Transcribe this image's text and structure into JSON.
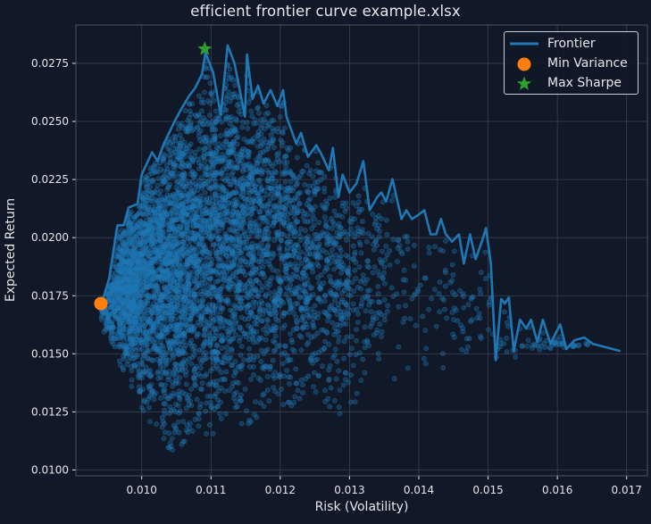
{
  "window": {
    "title": "efficient frontier curve example.xlsx"
  },
  "colors": {
    "background": "#111827",
    "grid": "#3a4150",
    "spine": "#4b5260",
    "text": "#e5e7eb",
    "scatter": "#1f77b4",
    "frontier": "#1f77b4",
    "min_variance": "#ff7f0e",
    "max_sharpe": "#2ca02c"
  },
  "legend": {
    "position": "upper right",
    "items": [
      {
        "label": "Frontier",
        "marker": "line",
        "color": "#1f77b4"
      },
      {
        "label": "Min Variance",
        "marker": "circle",
        "color": "#ff7f0e"
      },
      {
        "label": "Max Sharpe",
        "marker": "star",
        "color": "#2ca02c"
      }
    ]
  },
  "chart_data": {
    "type": "scatter",
    "title": "efficient frontier curve example.xlsx",
    "xlabel": "Risk (Volatility)",
    "ylabel": "Expected Return",
    "xlim": [
      0.00905,
      0.0173
    ],
    "ylim": [
      0.00975,
      0.02915
    ],
    "grid": true,
    "legend_position": "upper right",
    "x_ticks": [
      0.01,
      0.011,
      0.012,
      0.013,
      0.014,
      0.015,
      0.016,
      0.017
    ],
    "x_tick_labels": [
      "0.010",
      "0.011",
      "0.012",
      "0.013",
      "0.014",
      "0.015",
      "0.016",
      "0.017"
    ],
    "y_ticks": [
      0.01,
      0.0125,
      0.015,
      0.0175,
      0.02,
      0.0225,
      0.025,
      0.0275
    ],
    "y_tick_labels": [
      "0.0100",
      "0.0125",
      "0.0150",
      "0.0175",
      "0.0200",
      "0.0225",
      "0.0250",
      "0.0275"
    ],
    "series": [
      {
        "name": "Random Portfolios",
        "type": "scatter",
        "color": "#1f77b4",
        "alpha": 0.35,
        "approx_count": 8000,
        "note": "Dense cloud of simulated portfolios; densest around risk 0.0100–0.0115, return 0.0175–0.0225; sparse tail extending right to ~0.0165 risk; lowest returns ~0.0106 near risk ~0.0105.",
        "density_center": [
          0.0106,
          0.0195
        ],
        "envelope_bottom": [
          [
            0.00945,
            0.016
          ],
          [
            0.0098,
            0.0138
          ],
          [
            0.0101,
            0.0121
          ],
          [
            0.0104,
            0.0108
          ],
          [
            0.0107,
            0.0112
          ],
          [
            0.011,
            0.0109
          ],
          [
            0.0113,
            0.0118
          ],
          [
            0.0117,
            0.0121
          ],
          [
            0.012,
            0.0121
          ],
          [
            0.0124,
            0.0132
          ],
          [
            0.0129,
            0.0123
          ],
          [
            0.0133,
            0.013
          ],
          [
            0.0137,
            0.0139
          ],
          [
            0.0142,
            0.0141
          ],
          [
            0.0146,
            0.0137
          ],
          [
            0.015,
            0.0149
          ],
          [
            0.0155,
            0.0146
          ],
          [
            0.0159,
            0.0152
          ],
          [
            0.0165,
            0.0154
          ]
        ]
      },
      {
        "name": "Frontier",
        "type": "line",
        "color": "#1f77b4",
        "x": [
          0.00941,
          0.00946,
          0.00953,
          0.00965,
          0.00974,
          0.00981,
          0.00994,
          0.01,
          0.01015,
          0.01023,
          0.01032,
          0.01049,
          0.01058,
          0.01068,
          0.01077,
          0.01087,
          0.01092,
          0.01103,
          0.01114,
          0.01124,
          0.01134,
          0.01149,
          0.01152,
          0.0116,
          0.01168,
          0.01176,
          0.01186,
          0.01196,
          0.01204,
          0.01209,
          0.01223,
          0.0123,
          0.0124,
          0.01252,
          0.01258,
          0.0127,
          0.01276,
          0.01284,
          0.0129,
          0.013,
          0.0131,
          0.0132,
          0.01329,
          0.0134,
          0.01346,
          0.01353,
          0.01362,
          0.01375,
          0.01382,
          0.0139,
          0.014,
          0.01408,
          0.01417,
          0.01425,
          0.01432,
          0.01439,
          0.01448,
          0.01458,
          0.01465,
          0.01474,
          0.01482,
          0.01491,
          0.01497,
          0.01504,
          0.01511,
          0.01519,
          0.01524,
          0.0153,
          0.01537,
          0.01546,
          0.01555,
          0.01562,
          0.01571,
          0.01579,
          0.0159,
          0.01604,
          0.01613,
          0.01625,
          0.01639,
          0.01651,
          0.01691
        ],
        "y": [
          0.01716,
          0.01754,
          0.01823,
          0.02053,
          0.02053,
          0.02129,
          0.02145,
          0.02271,
          0.02367,
          0.02329,
          0.02405,
          0.02509,
          0.02558,
          0.02608,
          0.02643,
          0.02704,
          0.02796,
          0.02712,
          0.02529,
          0.02827,
          0.0275,
          0.02521,
          0.02788,
          0.02597,
          0.02654,
          0.02577,
          0.02635,
          0.02566,
          0.02635,
          0.02521,
          0.02405,
          0.02451,
          0.02348,
          0.02398,
          0.02367,
          0.0229,
          0.02386,
          0.02175,
          0.02271,
          0.02194,
          0.02233,
          0.02329,
          0.02118,
          0.02175,
          0.02194,
          0.02156,
          0.02252,
          0.0208,
          0.02118,
          0.0208,
          0.02099,
          0.02118,
          0.02014,
          0.02014,
          0.0208,
          0.02014,
          0.01983,
          0.02014,
          0.01888,
          0.02014,
          0.01907,
          0.01983,
          0.02041,
          0.01888,
          0.01472,
          0.01736,
          0.01716,
          0.01742,
          0.01512,
          0.01647,
          0.01609,
          0.01647,
          0.01551,
          0.01647,
          0.01543,
          0.01627,
          0.0152,
          0.01559,
          0.0157,
          0.01543,
          0.01512
        ]
      },
      {
        "name": "Min Variance",
        "type": "point",
        "marker": "circle",
        "color": "#ff7f0e",
        "x": [
          0.00941
        ],
        "y": [
          0.01716
        ]
      },
      {
        "name": "Max Sharpe",
        "type": "point",
        "marker": "star",
        "color": "#2ca02c",
        "x": [
          0.01091
        ],
        "y": [
          0.02812
        ]
      }
    ]
  }
}
